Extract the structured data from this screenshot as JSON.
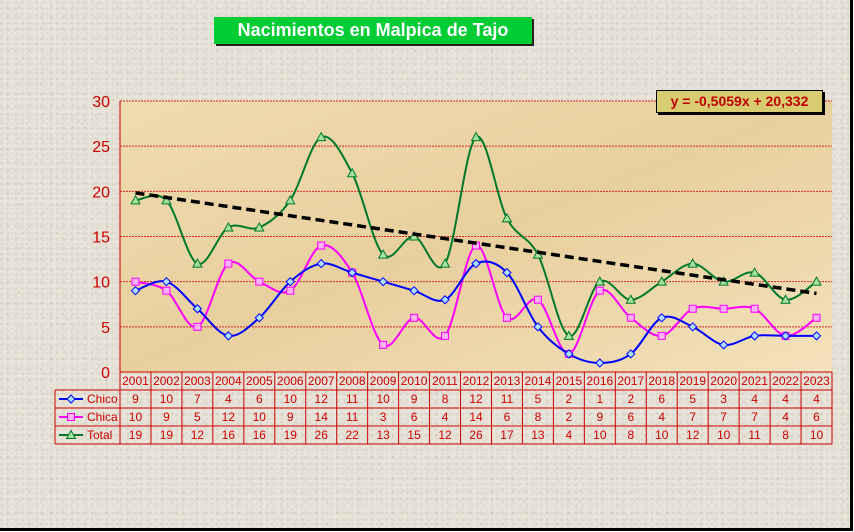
{
  "title": "Nacimientos en Malpica de Tajo",
  "equation": "y = -0,5059x + 20,332",
  "chart_data": {
    "type": "line",
    "title": "Nacimientos en Malpica de Tajo",
    "categories": [
      "2001",
      "2002",
      "2003",
      "2004",
      "2005",
      "2006",
      "2007",
      "2008",
      "2009",
      "2010",
      "2011",
      "2012",
      "2013",
      "2014",
      "2015",
      "2016",
      "2017",
      "2018",
      "2019",
      "2020",
      "2021",
      "2022",
      "2023"
    ],
    "ylim": [
      0,
      30
    ],
    "yticks": [
      0,
      5,
      10,
      15,
      20,
      25,
      30
    ],
    "grid": true,
    "series": [
      {
        "name": "Chico",
        "color": "#0000ff",
        "marker": "diamond",
        "values": [
          9,
          10,
          7,
          4,
          6,
          10,
          12,
          11,
          10,
          9,
          8,
          12,
          11,
          5,
          2,
          1,
          2,
          6,
          5,
          3,
          4,
          4,
          4
        ]
      },
      {
        "name": "Chica",
        "color": "#ff00ff",
        "marker": "square",
        "values": [
          10,
          9,
          5,
          12,
          10,
          9,
          14,
          11,
          3,
          6,
          4,
          14,
          6,
          8,
          2,
          9,
          6,
          4,
          7,
          7,
          7,
          4,
          6
        ]
      },
      {
        "name": "Total",
        "color": "#007a2a",
        "marker": "triangle",
        "values": [
          19,
          19,
          12,
          16,
          16,
          19,
          26,
          22,
          13,
          15,
          12,
          26,
          17,
          13,
          4,
          10,
          8,
          10,
          12,
          10,
          11,
          8,
          10
        ]
      }
    ],
    "trendline": {
      "equation": "y = -0,5059x + 20,332",
      "slope": -0.5059,
      "intercept": 20.332,
      "color": "#000000"
    }
  }
}
